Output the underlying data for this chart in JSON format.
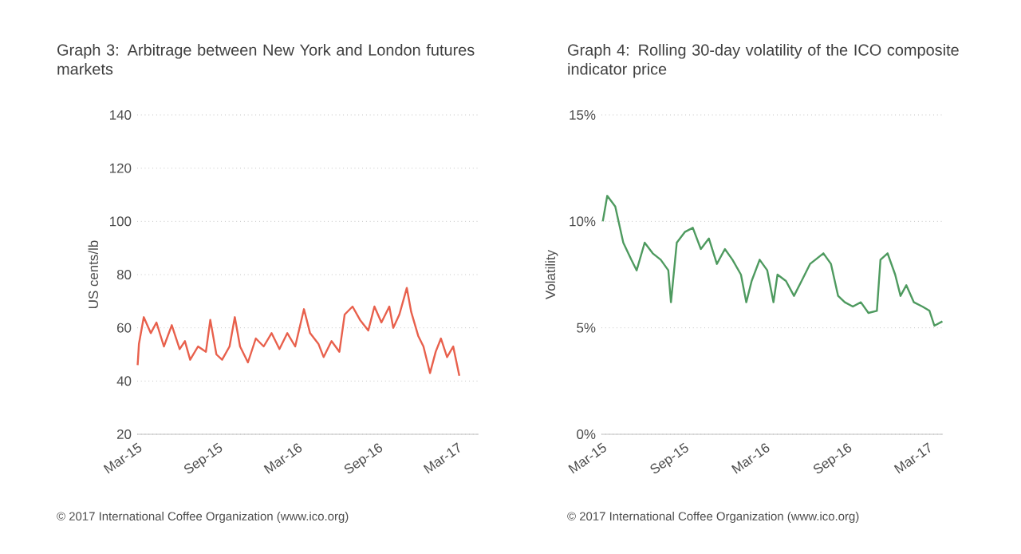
{
  "chart_data": [
    {
      "type": "line",
      "title": "Graph 3: Arbitrage between New York and London futures markets",
      "ylabel": "US cents/lb",
      "x": [
        "2015-02-26",
        "2015-03-01",
        "2015-03-12",
        "2015-03-28",
        "2015-04-10",
        "2015-04-27",
        "2015-05-15",
        "2015-06-02",
        "2015-06-14",
        "2015-06-26",
        "2015-07-14",
        "2015-08-01",
        "2015-08-11",
        "2015-08-25",
        "2015-09-07",
        "2015-09-24",
        "2015-10-06",
        "2015-10-18",
        "2015-11-05",
        "2015-11-23",
        "2015-12-11",
        "2015-12-29",
        "2016-01-16",
        "2016-02-03",
        "2016-02-21",
        "2016-03-12",
        "2016-03-26",
        "2016-04-14",
        "2016-04-26",
        "2016-05-14",
        "2016-06-01",
        "2016-06-13",
        "2016-07-01",
        "2016-07-18",
        "2016-08-06",
        "2016-08-20",
        "2016-09-05",
        "2016-09-23",
        "2016-10-02",
        "2016-10-16",
        "2016-11-02",
        "2016-11-12",
        "2016-11-28",
        "2016-12-10",
        "2016-12-25",
        "2017-01-07",
        "2017-01-19",
        "2017-02-02",
        "2017-02-16",
        "2017-03-02"
      ],
      "series": [
        {
          "color": "#e8604c",
          "values": [
            46,
            54,
            64,
            58,
            62,
            53,
            61,
            52,
            55,
            48,
            53,
            51,
            63,
            50,
            48,
            53,
            64,
            53,
            47,
            56,
            53,
            58,
            52,
            58,
            53,
            67,
            58,
            54,
            49,
            55,
            51,
            65,
            68,
            63,
            59,
            68,
            62,
            68,
            60,
            65,
            75,
            66,
            57,
            53,
            43,
            51,
            56,
            49,
            53,
            42
          ]
        }
      ],
      "xlim": [
        "2015-02-25",
        "2017-04-15"
      ],
      "ylim": [
        20,
        140
      ],
      "xticks": [
        {
          "value": "2015-03-01",
          "label": "Mar-15"
        },
        {
          "value": "2015-09-01",
          "label": "Sep-15"
        },
        {
          "value": "2016-03-01",
          "label": "Mar-16"
        },
        {
          "value": "2016-09-01",
          "label": "Sep-16"
        },
        {
          "value": "2017-03-01",
          "label": "Mar-17"
        }
      ],
      "yticks": [
        20,
        40,
        60,
        80,
        100,
        120,
        140
      ],
      "grid": "y",
      "annotations": [
        "© 2017 International Coffee Organization (www.ico.org)"
      ]
    },
    {
      "type": "line",
      "title": "Graph 4: Rolling 30-day volatility of the ICO composite indicator price",
      "ylabel": "Volatility",
      "x": [
        "2015-02-27",
        "2015-03-09",
        "2015-03-27",
        "2015-04-14",
        "2015-05-02",
        "2015-05-14",
        "2015-06-01",
        "2015-06-19",
        "2015-07-07",
        "2015-07-24",
        "2015-07-30",
        "2015-08-12",
        "2015-08-30",
        "2015-09-17",
        "2015-10-05",
        "2015-10-23",
        "2015-11-10",
        "2015-11-28",
        "2015-12-15",
        "2016-01-03",
        "2016-01-15",
        "2016-01-27",
        "2016-02-14",
        "2016-03-02",
        "2016-03-16",
        "2016-03-25",
        "2016-04-13",
        "2016-05-01",
        "2016-05-18",
        "2016-06-06",
        "2016-06-18",
        "2016-07-06",
        "2016-07-23",
        "2016-08-08",
        "2016-08-23",
        "2016-09-10",
        "2016-09-28",
        "2016-10-15",
        "2016-11-03",
        "2016-11-11",
        "2016-11-27",
        "2016-12-14",
        "2016-12-26",
        "2017-01-08",
        "2017-01-25",
        "2017-02-13",
        "2017-03-01",
        "2017-03-12",
        "2017-03-30"
      ],
      "series": [
        {
          "color": "#4e9a5f",
          "values": [
            10,
            11.2,
            10.7,
            9,
            8.2,
            7.7,
            9,
            8.5,
            8.2,
            7.7,
            6.2,
            9,
            9.5,
            9.7,
            8.7,
            9.2,
            8,
            8.7,
            8.2,
            7.5,
            6.2,
            7.2,
            8.2,
            7.7,
            6.2,
            7.5,
            7.2,
            6.5,
            7.2,
            8,
            8.2,
            8.5,
            8,
            6.5,
            6.2,
            6,
            6.2,
            5.7,
            5.8,
            8.2,
            8.5,
            7.5,
            6.5,
            7,
            6.2,
            6,
            5.8,
            5.1,
            5.3
          ]
        }
      ],
      "xlim": [
        "2015-02-24",
        "2017-03-31"
      ],
      "ylim": [
        0,
        15
      ],
      "xticks": [
        {
          "value": "2015-03-01",
          "label": "Mar-15"
        },
        {
          "value": "2015-09-01",
          "label": "Sep-15"
        },
        {
          "value": "2016-03-01",
          "label": "Mar-16"
        },
        {
          "value": "2016-09-01",
          "label": "Sep-16"
        },
        {
          "value": "2017-03-01",
          "label": "Mar-17"
        }
      ],
      "yticks": [
        {
          "value": 0,
          "label": "0%"
        },
        {
          "value": 5,
          "label": "5%"
        },
        {
          "value": 10,
          "label": "10%"
        },
        {
          "value": 15,
          "label": "15%"
        }
      ],
      "grid": "y",
      "annotations": [
        "© 2017 International Coffee Organization (www.ico.org)"
      ]
    }
  ]
}
